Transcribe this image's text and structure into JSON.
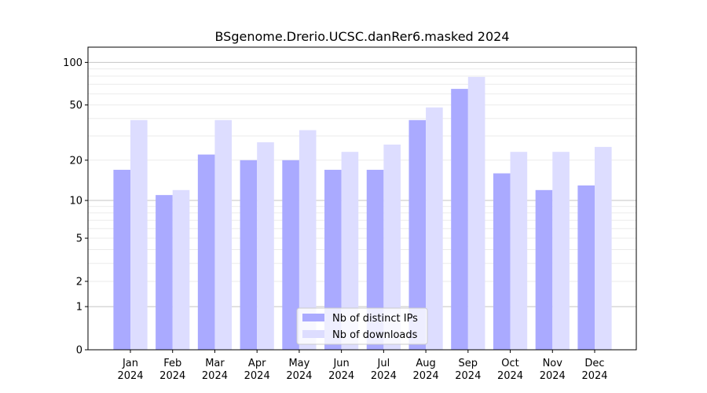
{
  "chart_data": {
    "type": "bar",
    "title": "BSgenome.Drerio.UCSC.danRer6.masked 2024",
    "xlabel": "",
    "ylabel": "",
    "yscale": "log10(1+y)",
    "ylim": [
      0,
      128
    ],
    "yticks": [
      0,
      1,
      2,
      5,
      10,
      20,
      50,
      100
    ],
    "grid": true,
    "legend_position": "bottom-center",
    "categories": [
      "Jan\n2024",
      "Feb\n2024",
      "Mar\n2024",
      "Apr\n2024",
      "May\n2024",
      "Jun\n2024",
      "Jul\n2024",
      "Aug\n2024",
      "Sep\n2024",
      "Oct\n2024",
      "Nov\n2024",
      "Dec\n2024"
    ],
    "series": [
      {
        "name": "Nb of distinct IPs",
        "color": "#aaaaff",
        "values": [
          17,
          11,
          22,
          20,
          20,
          17,
          17,
          39,
          65,
          16,
          12,
          13
        ]
      },
      {
        "name": "Nb of downloads",
        "color": "#ddddff",
        "values": [
          39,
          12,
          39,
          27,
          33,
          23,
          26,
          48,
          79,
          23,
          23,
          25
        ]
      }
    ]
  }
}
